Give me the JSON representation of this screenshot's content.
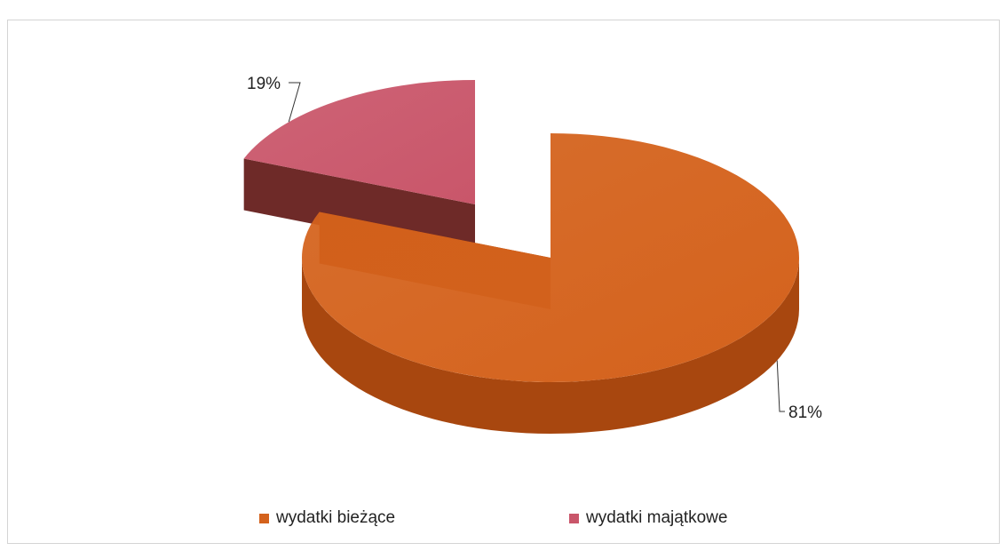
{
  "chart_data": {
    "type": "pie",
    "three_d": true,
    "exploded": true,
    "categories": [
      "wydatki bieżące",
      "wydatki majątkowe"
    ],
    "values": [
      81,
      19
    ],
    "data_labels": [
      "81%",
      "19%"
    ],
    "colors": {
      "wydatki bieżące": "#d4621c",
      "wydatki majątkowe": "#c9566a"
    },
    "side_colors": {
      "wydatki bieżące": "#a8470f",
      "wydatki majątkowe": "#6e2a28"
    },
    "legend_position": "bottom"
  }
}
